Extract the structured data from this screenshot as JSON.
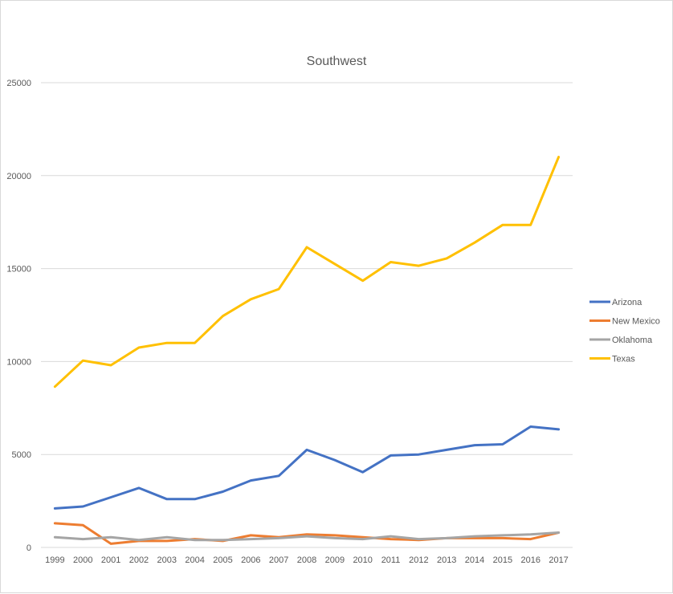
{
  "chart_data": {
    "type": "line",
    "title": "Southwest",
    "xlabel": "",
    "ylabel": "",
    "ylim": [
      0,
      25000
    ],
    "yticks": [
      0,
      5000,
      10000,
      15000,
      20000,
      25000
    ],
    "grid": true,
    "legend_position": "right",
    "categories": [
      "1999",
      "2000",
      "2001",
      "2002",
      "2003",
      "2004",
      "2005",
      "2006",
      "2007",
      "2008",
      "2009",
      "2010",
      "2011",
      "2012",
      "2013",
      "2014",
      "2015",
      "2016",
      "2017"
    ],
    "series": [
      {
        "name": "Arizona",
        "color": "#4472c4",
        "values": [
          2100,
          2200,
          2700,
          3200,
          2600,
          2600,
          3000,
          3600,
          3850,
          5250,
          4700,
          4050,
          4950,
          5000,
          5250,
          5500,
          5550,
          6500,
          6350
        ]
      },
      {
        "name": "New Mexico",
        "color": "#ed7d31",
        "values": [
          1300,
          1200,
          200,
          350,
          350,
          450,
          350,
          650,
          550,
          700,
          650,
          550,
          450,
          400,
          500,
          500,
          500,
          450,
          800
        ]
      },
      {
        "name": "Oklahoma",
        "color": "#a5a5a5",
        "values": [
          550,
          450,
          550,
          400,
          550,
          400,
          400,
          450,
          500,
          600,
          500,
          450,
          600,
          450,
          500,
          600,
          650,
          700,
          800
        ]
      },
      {
        "name": "Texas",
        "color": "#ffc000",
        "values": [
          8650,
          10050,
          9800,
          10750,
          11000,
          11000,
          12450,
          13350,
          13900,
          16150,
          15250,
          14350,
          15350,
          15150,
          15550,
          16400,
          17350,
          17350,
          21000
        ]
      }
    ]
  }
}
